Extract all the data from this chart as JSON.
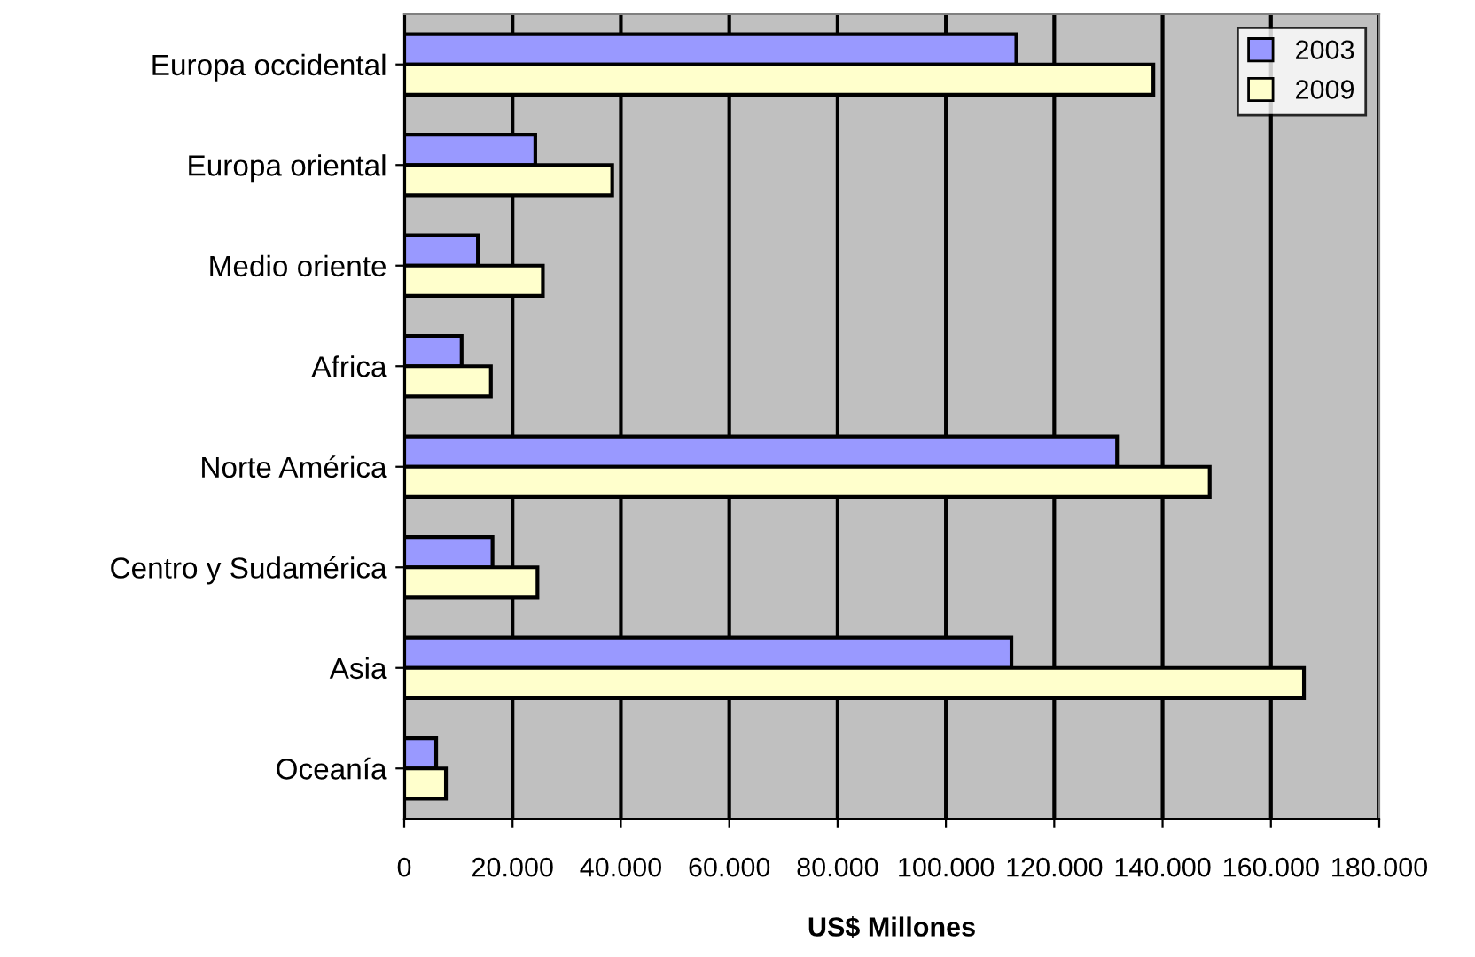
{
  "chart_data": {
    "type": "bar",
    "orientation": "horizontal",
    "xlabel": "US$ Millones",
    "categories": [
      "Europa occidental",
      "Europa oriental",
      "Medio oriente",
      "Africa",
      "Norte América",
      "Centro y Sudamérica",
      "Asia",
      "Oceanía"
    ],
    "series": [
      {
        "name": "2003",
        "color": "#9999ff",
        "values": [
          113000,
          24200,
          13600,
          10600,
          131600,
          16300,
          112100,
          5900
        ]
      },
      {
        "name": "2009",
        "color": "#ffffcc",
        "values": [
          138300,
          38400,
          25600,
          16000,
          148700,
          24600,
          166100,
          7700
        ]
      }
    ],
    "xlim": [
      0,
      180000
    ],
    "xticks": [
      {
        "value": 0,
        "label": "0"
      },
      {
        "value": 20000,
        "label": "20.000"
      },
      {
        "value": 40000,
        "label": "40.000"
      },
      {
        "value": 60000,
        "label": "60.000"
      },
      {
        "value": 80000,
        "label": "80.000"
      },
      {
        "value": 100000,
        "label": "100.000"
      },
      {
        "value": 120000,
        "label": "120.000"
      },
      {
        "value": 140000,
        "label": "140.000"
      },
      {
        "value": 160000,
        "label": "160.000"
      },
      {
        "value": 180000,
        "label": "180.000"
      }
    ],
    "grid": "x",
    "legend": "top right"
  }
}
